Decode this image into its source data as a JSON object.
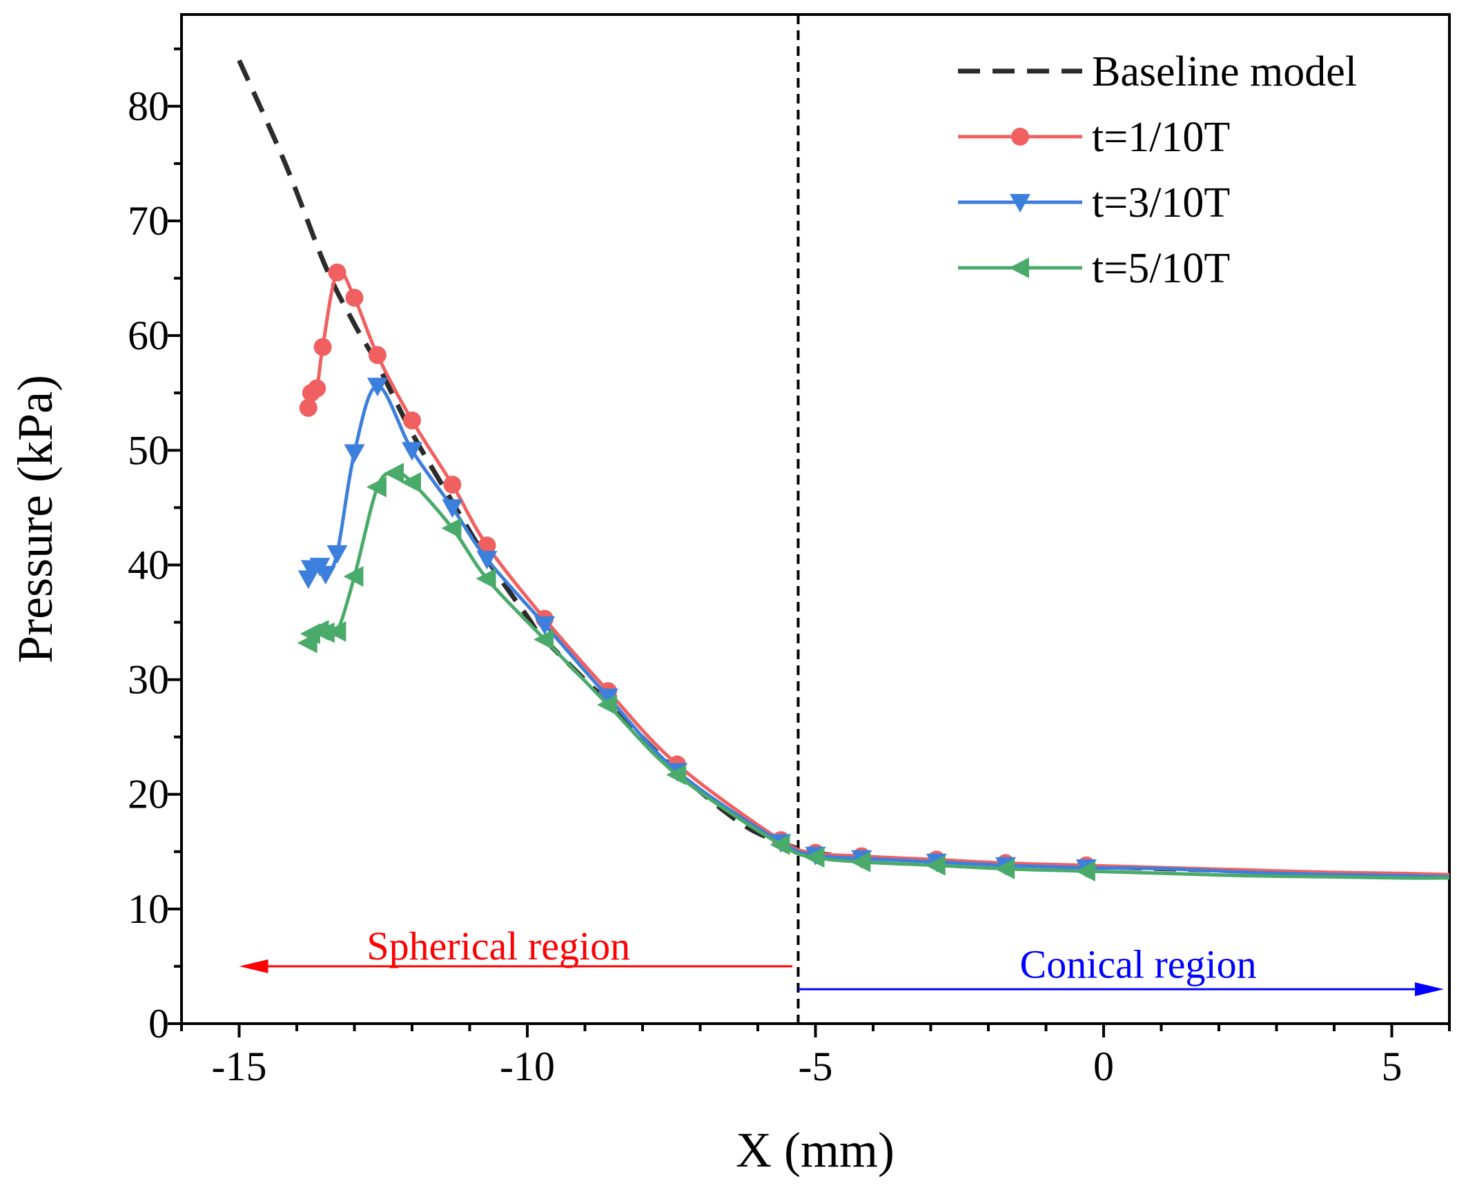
{
  "chart_data": {
    "type": "line",
    "title": "",
    "xlabel": "X (mm)",
    "ylabel": "Pressure (kPa)",
    "xlim": [
      -16,
      6
    ],
    "ylim": [
      0,
      88
    ],
    "xticks": [
      -15,
      -10,
      -5,
      0,
      5
    ],
    "yticks": [
      0,
      10,
      20,
      30,
      40,
      50,
      60,
      70,
      80
    ],
    "grid": false,
    "legend_position": "top-right",
    "divider_x": -5.3,
    "annotations": [
      {
        "text": "Spherical region",
        "color": "#ff0000",
        "arrow_from": -5.4,
        "arrow_to": -15,
        "arrow_y": 5,
        "text_x": -10.5,
        "text_y": 6.8
      },
      {
        "text": "Conical region",
        "color": "#0000ff",
        "arrow_from": -5.3,
        "arrow_to": 6,
        "arrow_y": 3,
        "text_x": 0.6,
        "text_y": 5.2
      }
    ],
    "series": [
      {
        "name": "Baseline model",
        "color": "#2b2b2b",
        "style": "dashed",
        "marker": "none",
        "x": [
          -15,
          -14.2,
          -13.5,
          -13,
          -12.6,
          -12,
          -11.3,
          -10.7,
          -10,
          -9.7,
          -8.6,
          -7.4,
          -6.3,
          -5.6,
          -5,
          -4.2,
          -2.9,
          -1.7,
          -0.3,
          1.1,
          2.5,
          3.9,
          5.2,
          6
        ],
        "y": [
          84,
          75,
          66,
          61,
          57.5,
          51.5,
          45.5,
          40.5,
          35.5,
          33.5,
          28,
          22,
          17.5,
          15.8,
          14.9,
          14.5,
          14.2,
          13.9,
          13.7,
          13.5,
          13.3,
          13.1,
          13.0,
          12.9
        ]
      },
      {
        "name": "t=1/10T",
        "color": "#f06060",
        "style": "solid",
        "marker": "circle",
        "x": [
          -13.8,
          -13.75,
          -13.65,
          -13.55,
          -13.3,
          -13,
          -12.6,
          -12,
          -11.3,
          -10.7,
          -9.7,
          -8.6,
          -7.4,
          -5.6,
          -5,
          -4.2,
          -2.9,
          -1.7,
          -0.3,
          1.1,
          2.5,
          3.9,
          5.2,
          6
        ],
        "y": [
          53.7,
          55.0,
          55.4,
          59.0,
          65.5,
          63.3,
          58.3,
          52.6,
          47.0,
          41.7,
          35.3,
          29.0,
          22.6,
          16.0,
          14.9,
          14.6,
          14.3,
          14.0,
          13.8,
          13.6,
          13.4,
          13.2,
          13.1,
          13.0
        ],
        "marker_count": 19
      },
      {
        "name": "t=3/10T",
        "color": "#3d7fdc",
        "style": "solid",
        "marker": "triangle-down",
        "x": [
          -13.8,
          -13.75,
          -13.6,
          -13.5,
          -13.3,
          -13,
          -12.6,
          -12,
          -11.3,
          -10.7,
          -9.7,
          -8.6,
          -7.4,
          -5.6,
          -5,
          -4.2,
          -2.9,
          -1.7,
          -0.3,
          1.1,
          2.5,
          3.9,
          5.2,
          6
        ],
        "y": [
          38.8,
          39.7,
          39.9,
          39.2,
          41.0,
          49.8,
          55.6,
          50.0,
          45.0,
          40.5,
          34.8,
          28.5,
          22.0,
          15.8,
          14.7,
          14.4,
          14.1,
          13.8,
          13.6,
          13.5,
          13.2,
          13.0,
          12.9,
          12.8
        ],
        "marker_count": 19
      },
      {
        "name": "t=5/10T",
        "color": "#4aaa6a",
        "style": "solid",
        "marker": "triangle-left",
        "x": [
          -13.8,
          -13.75,
          -13.6,
          -13.5,
          -13.3,
          -13,
          -12.6,
          -12.3,
          -12,
          -11.3,
          -10.7,
          -9.7,
          -8.6,
          -7.4,
          -5.6,
          -5,
          -4.2,
          -2.9,
          -1.7,
          -0.3,
          1.1,
          2.5,
          3.9,
          5.2,
          6
        ],
        "y": [
          33.2,
          34.0,
          34.3,
          34.1,
          34.2,
          39.0,
          46.8,
          48.0,
          47.2,
          43.2,
          38.8,
          33.5,
          27.8,
          21.7,
          15.6,
          14.5,
          14.1,
          13.8,
          13.5,
          13.3,
          13.1,
          12.9,
          12.8,
          12.7,
          12.7
        ],
        "marker_count": 20
      }
    ]
  }
}
